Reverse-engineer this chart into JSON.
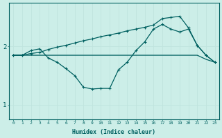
{
  "xlabel": "Humidex (Indice chaleur)",
  "bg_color": "#cceee8",
  "grid_color_minor": "#c0e4de",
  "grid_color_major": "#aad4ce",
  "line_color": "#006060",
  "x_values": [
    0,
    1,
    2,
    3,
    4,
    5,
    6,
    7,
    8,
    9,
    10,
    11,
    12,
    13,
    14,
    15,
    16,
    17,
    18,
    19,
    20,
    21,
    22,
    23
  ],
  "line1_y": [
    1.85,
    1.85,
    1.93,
    1.96,
    1.8,
    1.73,
    1.62,
    1.5,
    1.3,
    1.27,
    1.28,
    1.28,
    1.6,
    1.73,
    1.93,
    2.08,
    2.3,
    2.38,
    2.3,
    2.25,
    2.3,
    2.02,
    1.85,
    1.73
  ],
  "line2_y": [
    1.85,
    1.85,
    1.88,
    1.9,
    1.95,
    1.99,
    2.02,
    2.06,
    2.1,
    2.13,
    2.17,
    2.2,
    2.23,
    2.27,
    2.3,
    2.33,
    2.37,
    2.48,
    2.5,
    2.52,
    2.32,
    2.02,
    1.85,
    1.73
  ],
  "line3_y": [
    1.85,
    1.85,
    1.85,
    1.85,
    1.85,
    1.85,
    1.85,
    1.85,
    1.85,
    1.85,
    1.85,
    1.85,
    1.85,
    1.85,
    1.85,
    1.85,
    1.85,
    1.85,
    1.85,
    1.85,
    1.85,
    1.85,
    1.78,
    1.73
  ],
  "ylim": [
    0.75,
    2.75
  ],
  "yticks": [
    1,
    2
  ],
  "xlim": [
    -0.5,
    23.5
  ],
  "xticks": [
    0,
    1,
    2,
    3,
    4,
    5,
    6,
    7,
    8,
    9,
    10,
    11,
    12,
    13,
    14,
    15,
    16,
    17,
    18,
    19,
    20,
    21,
    22,
    23
  ]
}
